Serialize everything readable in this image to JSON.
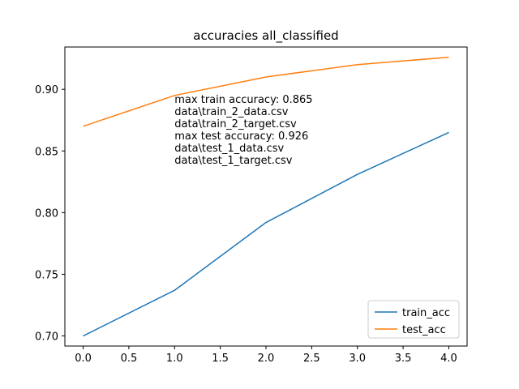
{
  "chart_data": {
    "type": "line",
    "title": "accuracies all_classified",
    "xlabel": "",
    "ylabel": "",
    "xlim": [
      -0.2,
      4.2
    ],
    "ylim": [
      0.6918,
      0.9343
    ],
    "xticks": [
      0.0,
      0.5,
      1.0,
      1.5,
      2.0,
      2.5,
      3.0,
      3.5,
      4.0
    ],
    "xtick_labels": [
      "0.0",
      "0.5",
      "1.0",
      "1.5",
      "2.0",
      "2.5",
      "3.0",
      "3.5",
      "4.0"
    ],
    "yticks": [
      0.7,
      0.75,
      0.8,
      0.85,
      0.9
    ],
    "ytick_labels": [
      "0.70",
      "0.75",
      "0.80",
      "0.85",
      "0.90"
    ],
    "grid": false,
    "legend_position": "lower-right",
    "x": [
      0,
      1,
      2,
      3,
      4
    ],
    "series": [
      {
        "name": "train_acc",
        "color": "#1f77b4",
        "values": [
          0.7,
          0.737,
          0.792,
          0.831,
          0.865
        ]
      },
      {
        "name": "test_acc",
        "color": "#ff7f0e",
        "values": [
          0.87,
          0.895,
          0.91,
          0.92,
          0.926
        ]
      }
    ],
    "annotation": {
      "anchor": [
        1.0,
        0.895
      ],
      "lines": [
        "max train accuracy: 0.865",
        "data\\train_2_data.csv",
        "data\\train_2_target.csv",
        "max test accuracy: 0.926",
        "data\\test_1_data.csv",
        "data\\test_1_target.csv"
      ]
    }
  }
}
